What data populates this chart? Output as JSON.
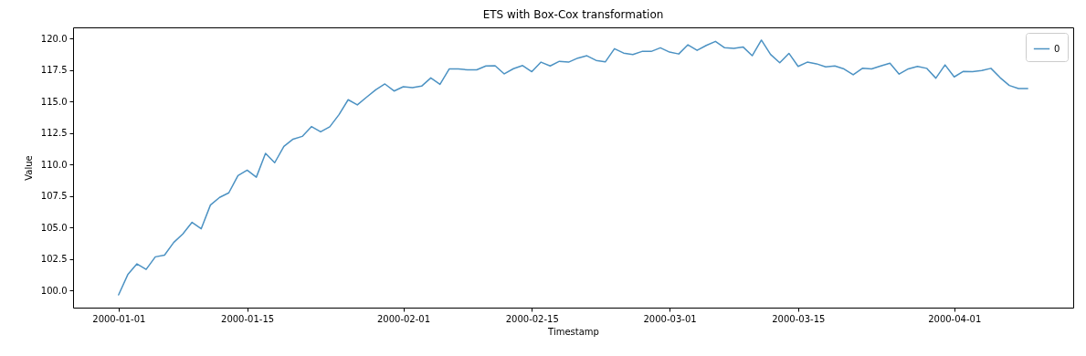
{
  "chart_data": {
    "type": "line",
    "title": "ETS with Box-Cox transformation",
    "xlabel": "Timestamp",
    "ylabel": "Value",
    "x": [
      "2000-01-01",
      "2000-01-02",
      "2000-01-03",
      "2000-01-04",
      "2000-01-05",
      "2000-01-06",
      "2000-01-07",
      "2000-01-08",
      "2000-01-09",
      "2000-01-10",
      "2000-01-11",
      "2000-01-12",
      "2000-01-13",
      "2000-01-14",
      "2000-01-15",
      "2000-01-16",
      "2000-01-17",
      "2000-01-18",
      "2000-01-19",
      "2000-01-20",
      "2000-01-21",
      "2000-01-22",
      "2000-01-23",
      "2000-01-24",
      "2000-01-25",
      "2000-01-26",
      "2000-01-27",
      "2000-01-28",
      "2000-01-29",
      "2000-01-30",
      "2000-01-31",
      "2000-02-01",
      "2000-02-02",
      "2000-02-03",
      "2000-02-04",
      "2000-02-05",
      "2000-02-06",
      "2000-02-07",
      "2000-02-08",
      "2000-02-09",
      "2000-02-10",
      "2000-02-11",
      "2000-02-12",
      "2000-02-13",
      "2000-02-14",
      "2000-02-15",
      "2000-02-16",
      "2000-02-17",
      "2000-02-18",
      "2000-02-19",
      "2000-02-20",
      "2000-02-21",
      "2000-02-22",
      "2000-02-23",
      "2000-02-24",
      "2000-02-25",
      "2000-02-26",
      "2000-02-27",
      "2000-02-28",
      "2000-02-29",
      "2000-03-01",
      "2000-03-02",
      "2000-03-03",
      "2000-03-04",
      "2000-03-05",
      "2000-03-06",
      "2000-03-07",
      "2000-03-08",
      "2000-03-09",
      "2000-03-10",
      "2000-03-11",
      "2000-03-12",
      "2000-03-13",
      "2000-03-14",
      "2000-03-15",
      "2000-03-16",
      "2000-03-17",
      "2000-03-18",
      "2000-03-19",
      "2000-03-20",
      "2000-03-21",
      "2000-03-22",
      "2000-03-23",
      "2000-03-24",
      "2000-03-25",
      "2000-03-26",
      "2000-03-27",
      "2000-03-28",
      "2000-03-29",
      "2000-03-30",
      "2000-03-31",
      "2000-04-01",
      "2000-04-02",
      "2000-04-03",
      "2000-04-04",
      "2000-04-05",
      "2000-04-06",
      "2000-04-07",
      "2000-04-08",
      "2000-04-09"
    ],
    "series": [
      {
        "name": "0",
        "color": "#4c92c3",
        "values": [
          99.66,
          101.27,
          102.12,
          101.68,
          102.68,
          102.82,
          103.82,
          104.5,
          105.42,
          104.91,
          106.79,
          107.4,
          107.76,
          109.12,
          109.56,
          109.0,
          110.9,
          110.15,
          111.44,
          112.02,
          112.24,
          113.02,
          112.6,
          113.0,
          113.96,
          115.15,
          114.74,
          115.35,
          115.94,
          116.4,
          115.84,
          116.18,
          116.11,
          116.23,
          116.88,
          116.37,
          117.59,
          117.59,
          117.52,
          117.52,
          117.83,
          117.85,
          117.2,
          117.61,
          117.86,
          117.37,
          118.13,
          117.83,
          118.2,
          118.13,
          118.45,
          118.64,
          118.27,
          118.15,
          119.2,
          118.85,
          118.74,
          118.98,
          118.98,
          119.27,
          118.93,
          118.78,
          119.51,
          119.07,
          119.46,
          119.78,
          119.27,
          119.22,
          119.34,
          118.64,
          119.88,
          118.74,
          118.08,
          118.83,
          117.79,
          118.13,
          118.0,
          117.76,
          117.83,
          117.59,
          117.13,
          117.64,
          117.6,
          117.83,
          118.05,
          117.18,
          117.6,
          117.8,
          117.64,
          116.86,
          117.91,
          116.96,
          117.4,
          117.38,
          117.47,
          117.64,
          116.9,
          116.28,
          116.04,
          116.04
        ]
      }
    ],
    "xlim": [
      "1999-12-27T01:00",
      "2000-04-13T23:00"
    ],
    "xticks": [
      "2000-01-01",
      "2000-01-15",
      "2000-02-01",
      "2000-02-15",
      "2000-03-01",
      "2000-03-15",
      "2000-04-01"
    ],
    "ylim": [
      98.65,
      120.89
    ],
    "yticks": [
      {
        "value": 100,
        "label": "100.0"
      },
      {
        "value": 102.5,
        "label": "102.5"
      },
      {
        "value": 105,
        "label": "105.0"
      },
      {
        "value": 107.5,
        "label": "107.5"
      },
      {
        "value": 110,
        "label": "110.0"
      },
      {
        "value": 112.5,
        "label": "112.5"
      },
      {
        "value": 115,
        "label": "115.0"
      },
      {
        "value": 117.5,
        "label": "117.5"
      },
      {
        "value": 120,
        "label": "120.0"
      }
    ],
    "grid": false,
    "legend": "top right"
  }
}
